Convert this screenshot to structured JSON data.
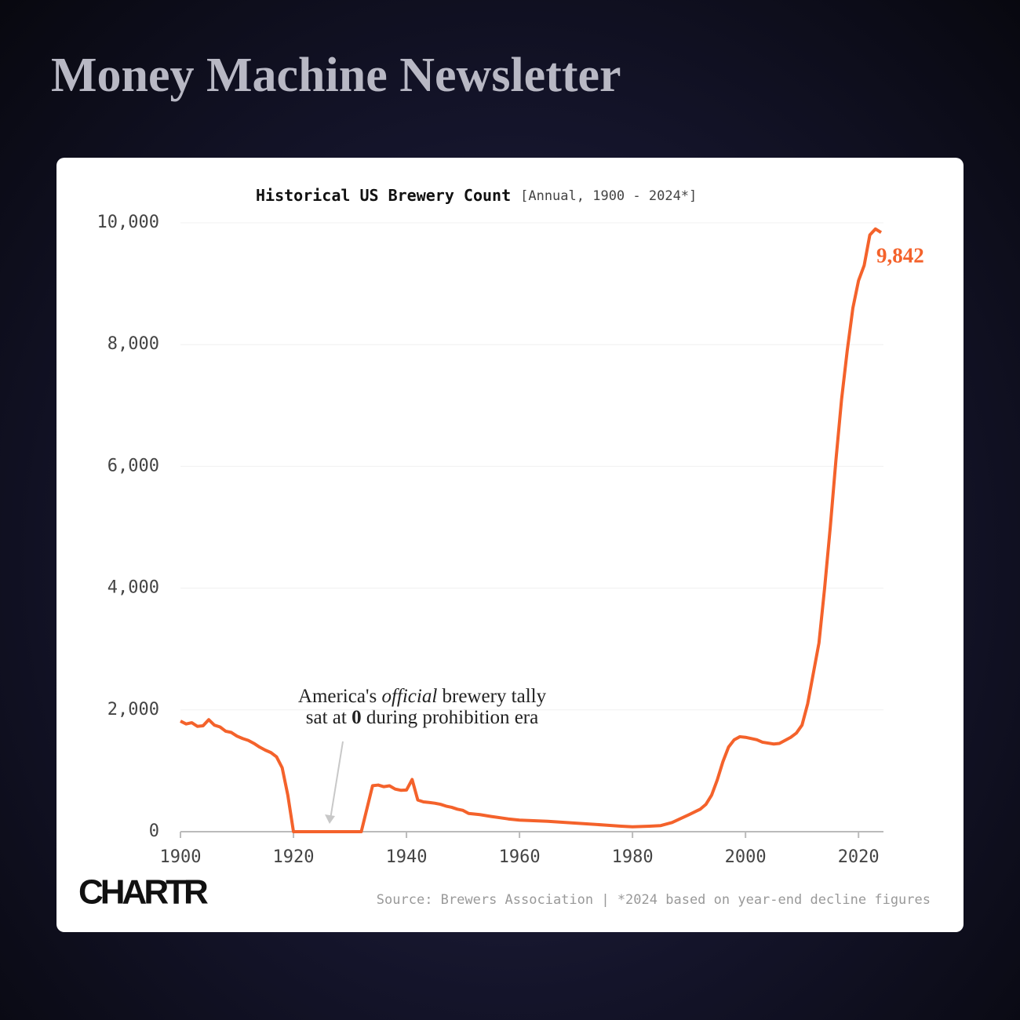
{
  "header": {
    "title": "Money Machine Newsletter"
  },
  "chart_data": {
    "type": "line",
    "title": "Historical US Brewery Count",
    "subtitle": "[Annual, 1900 - 2024*]",
    "x": [
      1900,
      1901,
      1902,
      1903,
      1904,
      1905,
      1906,
      1907,
      1908,
      1909,
      1910,
      1911,
      1912,
      1913,
      1914,
      1915,
      1916,
      1917,
      1918,
      1919,
      1920,
      1924,
      1928,
      1932,
      1934,
      1935,
      1936,
      1937,
      1938,
      1939,
      1940,
      1941,
      1942,
      1943,
      1944,
      1945,
      1946,
      1947,
      1948,
      1949,
      1950,
      1951,
      1952,
      1953,
      1955,
      1958,
      1960,
      1965,
      1970,
      1975,
      1978,
      1980,
      1983,
      1985,
      1987,
      1990,
      1992,
      1993,
      1994,
      1995,
      1996,
      1997,
      1998,
      1999,
      2000,
      2002,
      2003,
      2005,
      2006,
      2008,
      2009,
      2010,
      2011,
      2012,
      2013,
      2014,
      2015,
      2016,
      2017,
      2018,
      2019,
      2020,
      2021,
      2022,
      2023,
      2024
    ],
    "series": [
      {
        "name": "Breweries",
        "color": "#f4622b",
        "values": [
          1816,
          1770,
          1790,
          1730,
          1740,
          1840,
          1750,
          1720,
          1650,
          1630,
          1570,
          1530,
          1500,
          1450,
          1390,
          1340,
          1300,
          1230,
          1050,
          600,
          0,
          0,
          0,
          0,
          756,
          766,
          739,
          754,
          700,
          680,
          684,
          857,
          520,
          490,
          480,
          468,
          450,
          420,
          400,
          370,
          350,
          300,
          290,
          280,
          250,
          210,
          190,
          170,
          140,
          110,
          90,
          80,
          90,
          100,
          150,
          280,
          370,
          450,
          600,
          850,
          1150,
          1390,
          1510,
          1560,
          1550,
          1510,
          1470,
          1440,
          1450,
          1550,
          1620,
          1750,
          2100,
          2600,
          3100,
          4000,
          5000,
          6100,
          7100,
          7900,
          8600,
          9050,
          9300,
          9800,
          9900,
          9842
        ],
        "value_labels": [
          null,
          null,
          null,
          null,
          null,
          null,
          null,
          null,
          null,
          null,
          null,
          null,
          null,
          null,
          null,
          null,
          null,
          null,
          null,
          null,
          null,
          null,
          null,
          null,
          null,
          null,
          null,
          null,
          null,
          null,
          null,
          null,
          null,
          null,
          null,
          null,
          null,
          null,
          null,
          null,
          null,
          null,
          null,
          null,
          null,
          null,
          null,
          null,
          null,
          null,
          null,
          null,
          null,
          null,
          null,
          null,
          null,
          null,
          null,
          null,
          null,
          null,
          null,
          null,
          null,
          null,
          null,
          null,
          null,
          null,
          null,
          null,
          null,
          null,
          null,
          null,
          null,
          null,
          null,
          null,
          null,
          null,
          null,
          null,
          null,
          "9,842"
        ]
      }
    ],
    "xlim": [
      1900,
      2024
    ],
    "xticks": [
      1900,
      1920,
      1940,
      1960,
      1980,
      2000,
      2020
    ],
    "ylim": [
      0,
      10000
    ],
    "yticks": [
      0,
      {
        "value": 2000,
        "label": "2,000"
      },
      {
        "value": 4000,
        "label": "4,000"
      },
      {
        "value": 6000,
        "label": "6,000"
      },
      {
        "value": 8000,
        "label": "8,000"
      },
      {
        "value": 10000,
        "label": "10,000"
      }
    ],
    "grid": true,
    "annotation": [
      [
        "America's ",
        "official",
        " brewery tally"
      ],
      [
        "sat at ",
        "0",
        " during prohibition era"
      ]
    ],
    "source": "Source: Brewers Association | *2024 based on year-end decline figures",
    "logo": "CHARTR"
  }
}
